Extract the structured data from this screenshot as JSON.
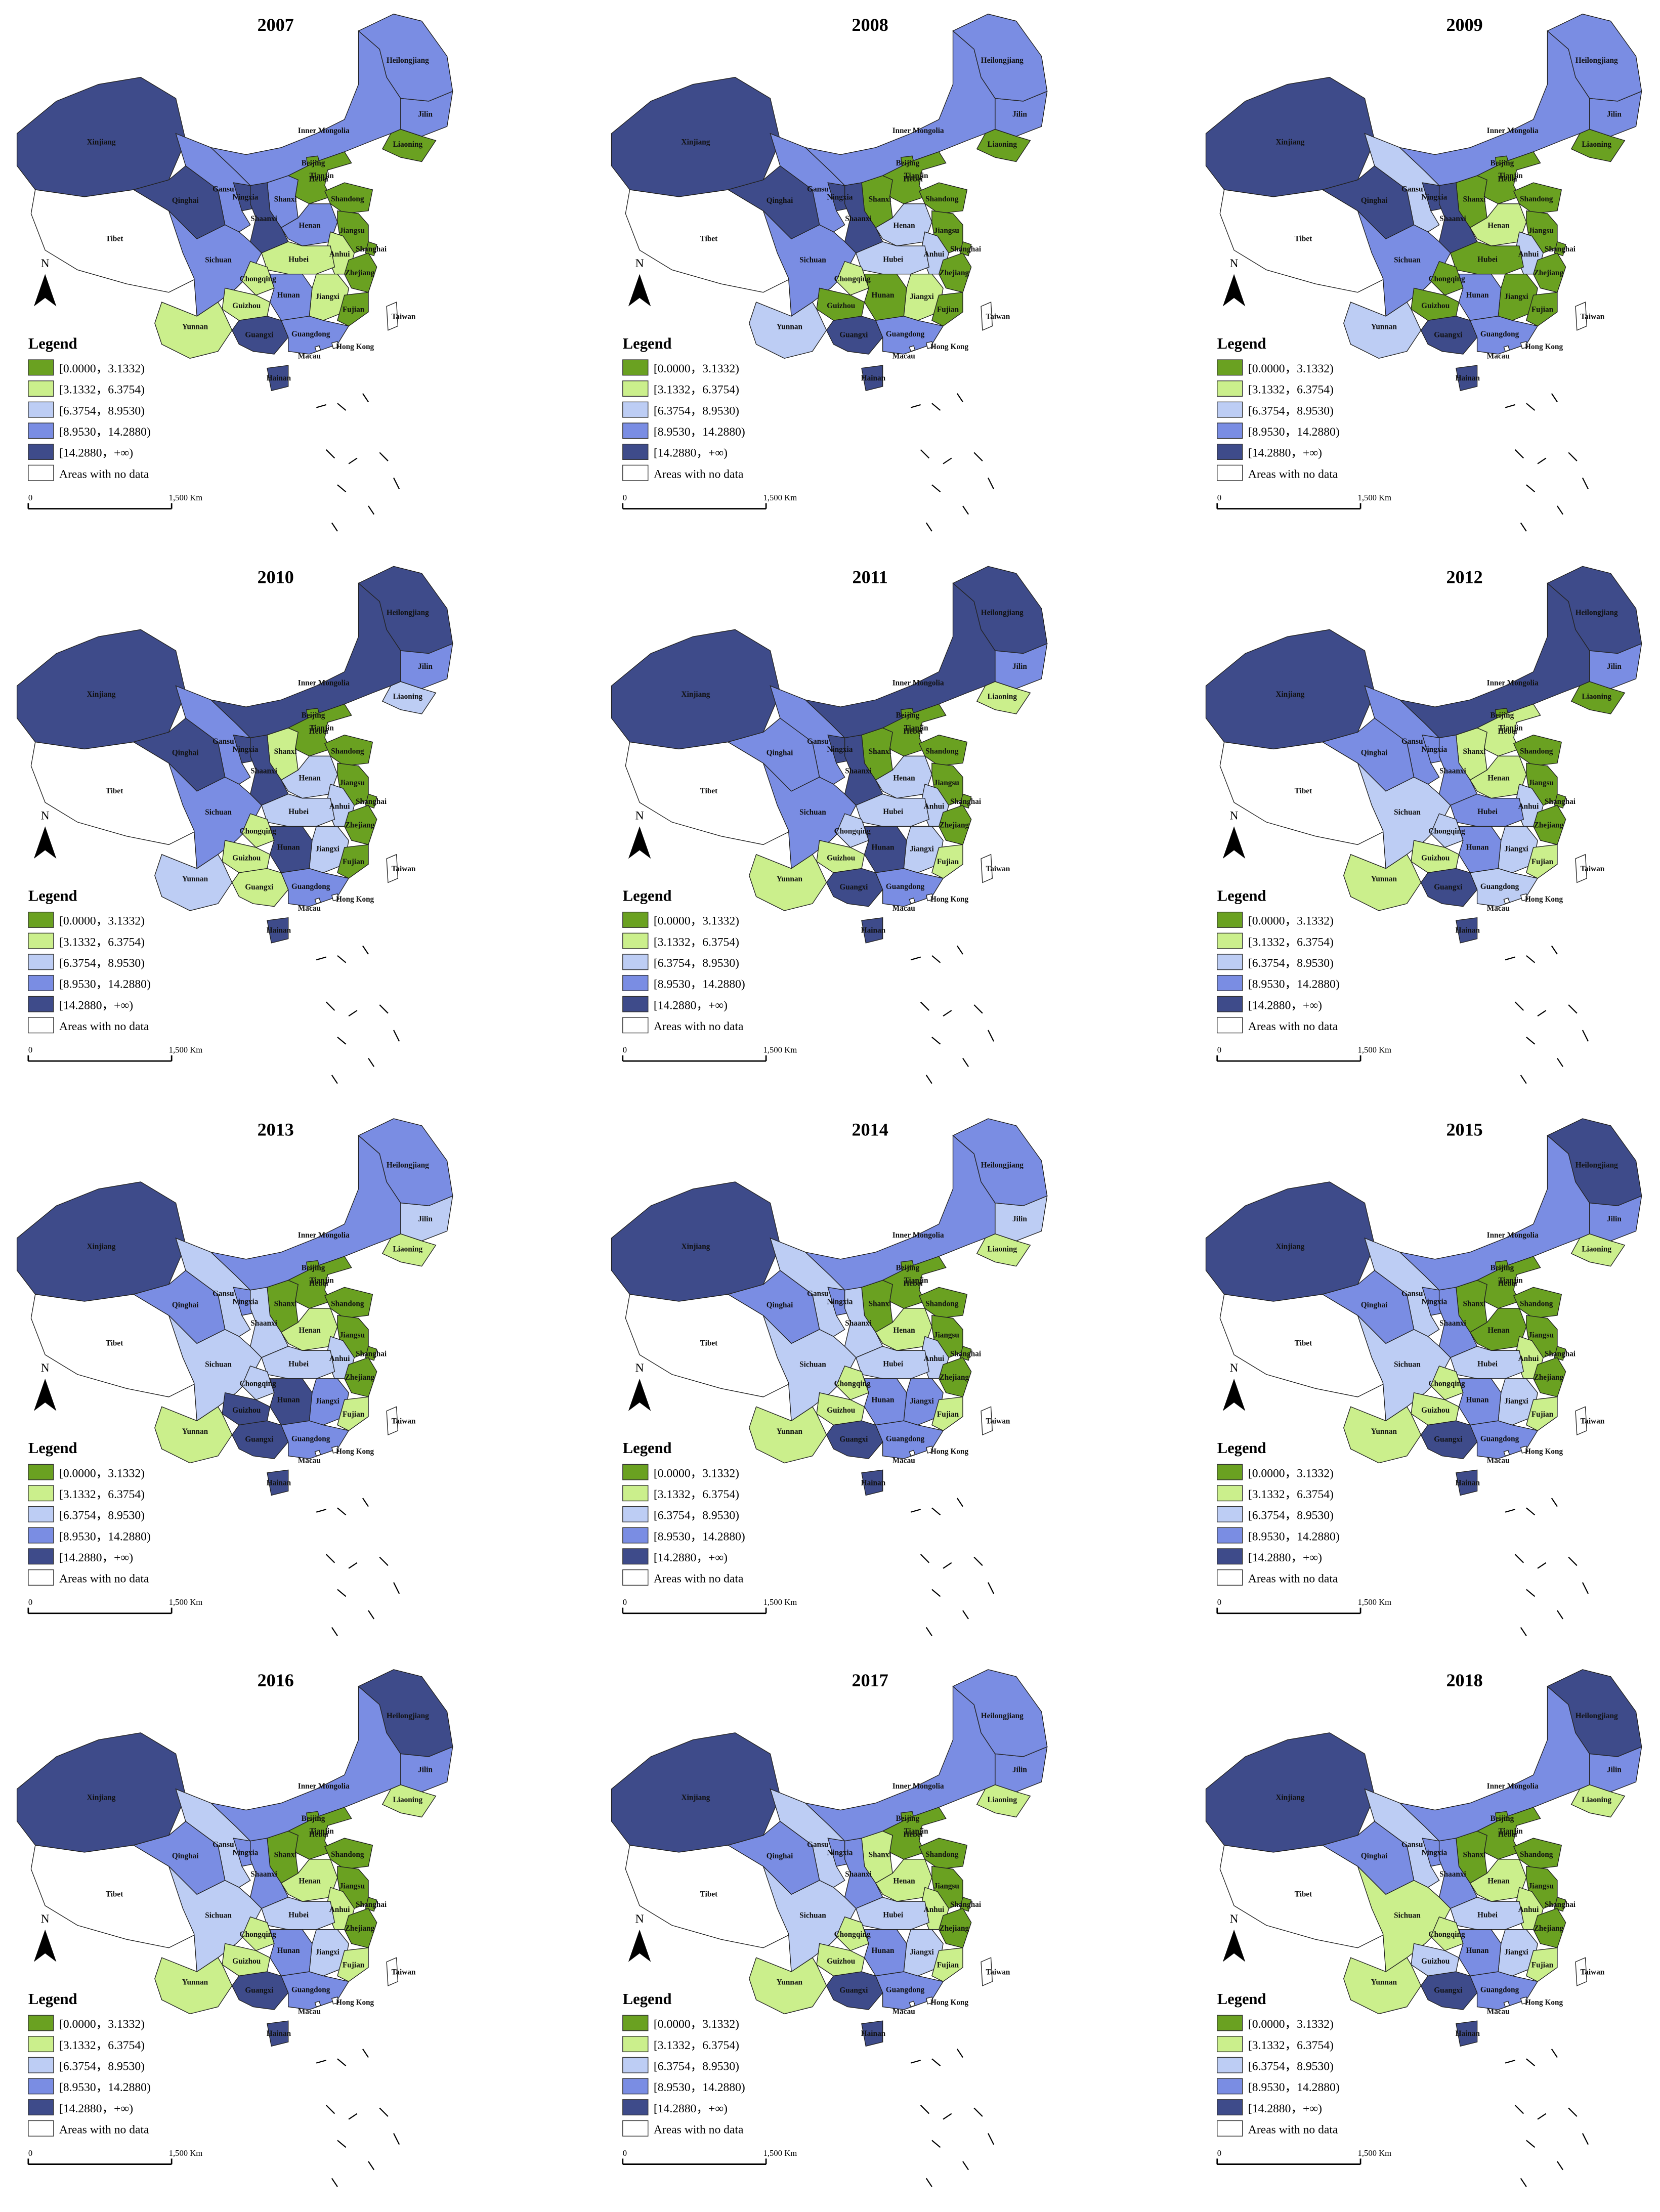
{
  "provinces": [
    "Xinjiang",
    "Tibet",
    "Qinghai",
    "Gansu",
    "Inner Mongolia",
    "Heilongjiang",
    "Jilin",
    "Liaoning",
    "Beijing",
    "Tianjin",
    "Hebei",
    "Shanxi",
    "Shandong",
    "Ningxia",
    "Shaanxi",
    "Henan",
    "Jiangsu",
    "Shanghai",
    "Anhui",
    "Hubei",
    "Zhejiang",
    "Sichuan",
    "Chongqing",
    "Guizhou",
    "Hunan",
    "Jiangxi",
    "Fujian",
    "Yunnan",
    "Guangxi",
    "Guangdong",
    "Hainan",
    "Taiwan",
    "Hong Kong",
    "Macau"
  ],
  "legend": {
    "title": "Legend",
    "items": [
      {
        "label": "[0.0000，3.1332)",
        "color": "#6aa121"
      },
      {
        "label": "[3.1332，6.3754)",
        "color": "#cbef8c"
      },
      {
        "label": "[6.3754，8.9530)",
        "color": "#bdcdf4"
      },
      {
        "label": "[8.9530，14.2880)",
        "color": "#7a8de3"
      },
      {
        "label": "[14.2880，+∞)",
        "color": "#3e4b8a"
      }
    ],
    "no_data": {
      "label": "Areas with no data",
      "color": "#ffffff"
    }
  },
  "north": "N",
  "scale": {
    "start": "0",
    "end": "1,500 Km"
  },
  "panels": [
    {
      "year": "2007",
      "classes": [
        4,
        null,
        4,
        3,
        3,
        3,
        3,
        0,
        0,
        0,
        0,
        3,
        0,
        4,
        4,
        3,
        0,
        0,
        1,
        1,
        0,
        3,
        1,
        1,
        3,
        1,
        0,
        1,
        4,
        3,
        4,
        null,
        null,
        null
      ]
    },
    {
      "year": "2008",
      "classes": [
        4,
        null,
        4,
        3,
        3,
        3,
        3,
        0,
        0,
        0,
        0,
        0,
        0,
        4,
        4,
        2,
        0,
        0,
        2,
        2,
        0,
        3,
        1,
        0,
        0,
        1,
        0,
        2,
        4,
        3,
        4,
        null,
        null,
        null
      ]
    },
    {
      "year": "2009",
      "classes": [
        4,
        null,
        4,
        2,
        3,
        3,
        3,
        0,
        0,
        0,
        0,
        0,
        0,
        4,
        4,
        1,
        0,
        0,
        2,
        0,
        0,
        3,
        0,
        0,
        3,
        0,
        0,
        2,
        4,
        3,
        4,
        null,
        null,
        null
      ]
    },
    {
      "year": "2010",
      "classes": [
        4,
        null,
        4,
        3,
        4,
        4,
        3,
        2,
        0,
        0,
        0,
        1,
        0,
        4,
        4,
        2,
        0,
        0,
        2,
        2,
        0,
        3,
        1,
        1,
        4,
        2,
        0,
        2,
        1,
        3,
        4,
        null,
        null,
        null
      ]
    },
    {
      "year": "2011",
      "classes": [
        4,
        null,
        3,
        3,
        4,
        4,
        3,
        1,
        0,
        0,
        0,
        0,
        0,
        4,
        4,
        2,
        0,
        0,
        2,
        2,
        0,
        3,
        2,
        1,
        4,
        2,
        1,
        1,
        4,
        3,
        4,
        null,
        null,
        null
      ]
    },
    {
      "year": "2012",
      "classes": [
        4,
        null,
        3,
        3,
        4,
        4,
        3,
        0,
        0,
        0,
        1,
        1,
        0,
        3,
        3,
        1,
        0,
        0,
        2,
        3,
        0,
        2,
        2,
        1,
        3,
        2,
        1,
        1,
        4,
        2,
        4,
        null,
        null,
        null
      ]
    },
    {
      "year": "2013",
      "classes": [
        4,
        null,
        3,
        2,
        3,
        3,
        2,
        1,
        0,
        0,
        0,
        0,
        0,
        3,
        2,
        1,
        0,
        0,
        2,
        2,
        0,
        2,
        2,
        4,
        4,
        3,
        1,
        1,
        4,
        3,
        4,
        null,
        null,
        null
      ]
    },
    {
      "year": "2014",
      "classes": [
        4,
        null,
        3,
        2,
        3,
        3,
        2,
        1,
        0,
        0,
        0,
        0,
        0,
        3,
        2,
        1,
        0,
        0,
        2,
        2,
        0,
        2,
        1,
        1,
        3,
        3,
        1,
        1,
        4,
        3,
        4,
        null,
        null,
        null
      ]
    },
    {
      "year": "2015",
      "classes": [
        4,
        null,
        3,
        2,
        3,
        4,
        3,
        1,
        0,
        0,
        0,
        0,
        0,
        3,
        3,
        0,
        0,
        0,
        1,
        2,
        0,
        2,
        1,
        1,
        3,
        2,
        1,
        1,
        4,
        3,
        4,
        null,
        null,
        null
      ]
    },
    {
      "year": "2016",
      "classes": [
        4,
        null,
        3,
        2,
        3,
        4,
        3,
        1,
        0,
        0,
        0,
        0,
        0,
        3,
        3,
        1,
        0,
        0,
        1,
        2,
        0,
        2,
        1,
        1,
        3,
        2,
        1,
        1,
        4,
        3,
        4,
        null,
        null,
        null
      ]
    },
    {
      "year": "2017",
      "classes": [
        4,
        null,
        3,
        2,
        3,
        3,
        3,
        1,
        0,
        0,
        0,
        1,
        0,
        3,
        3,
        1,
        0,
        0,
        1,
        2,
        0,
        2,
        1,
        1,
        3,
        2,
        1,
        1,
        4,
        3,
        4,
        null,
        null,
        null
      ]
    },
    {
      "year": "2018",
      "classes": [
        4,
        null,
        3,
        2,
        3,
        4,
        3,
        1,
        0,
        0,
        0,
        0,
        0,
        3,
        3,
        1,
        0,
        0,
        1,
        2,
        0,
        1,
        1,
        2,
        3,
        2,
        1,
        1,
        4,
        3,
        4,
        null,
        null,
        null
      ]
    }
  ]
}
